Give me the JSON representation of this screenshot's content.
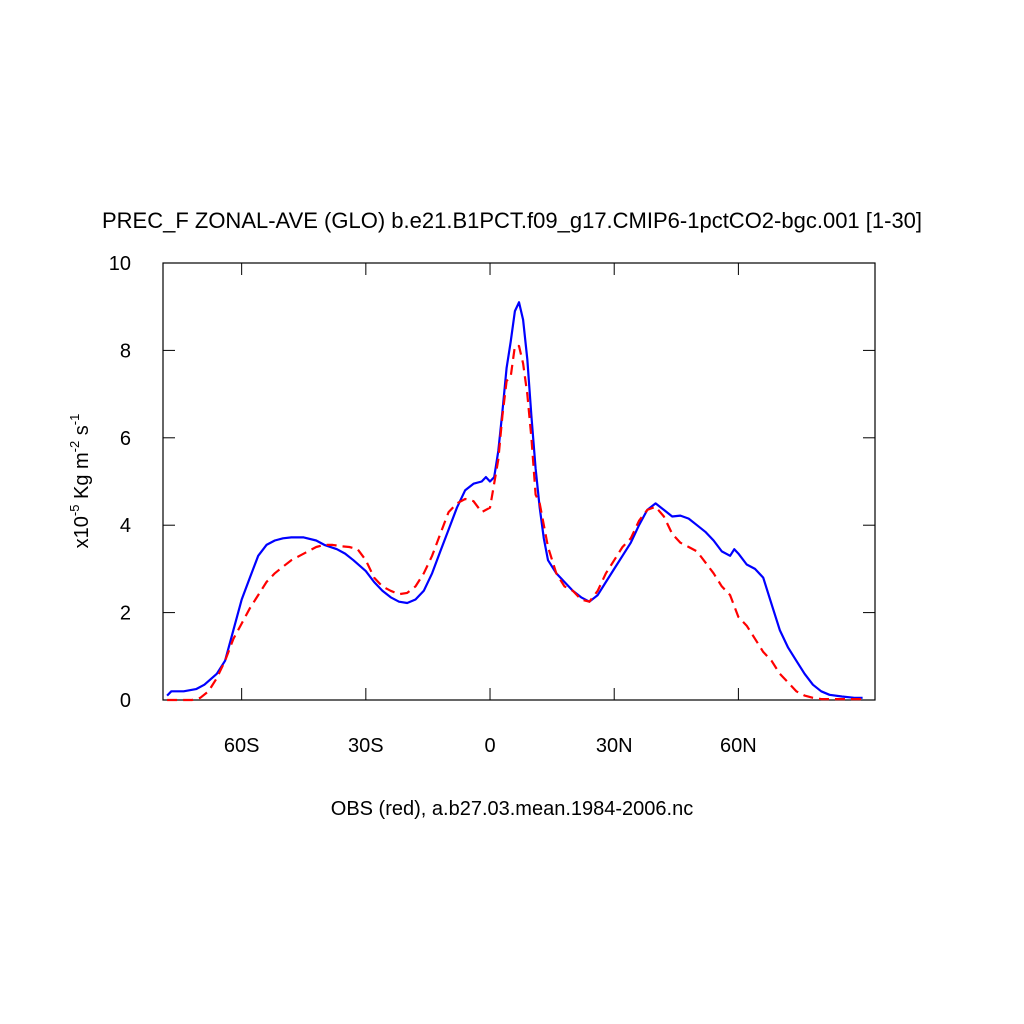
{
  "chart_data": {
    "type": "line",
    "title": "PREC_F ZONAL-AVE (GLO) b.e21.B1PCT.f09_g17.CMIP6-1pctCO2-bgc.001 [1-30]",
    "subtitle": "OBS (red), a.b27.03.mean.1984-2006.nc",
    "ylabel_parts": [
      "x10",
      "-5",
      " Kg m",
      "-2",
      " s",
      "-1"
    ],
    "xlim": [
      -79,
      93
    ],
    "ylim": [
      0,
      10
    ],
    "xticks": [
      {
        "value": -60,
        "label": "60S"
      },
      {
        "value": -30,
        "label": "30S"
      },
      0,
      {
        "value": 30,
        "label": "30N"
      },
      {
        "value": 60,
        "label": "60N"
      }
    ],
    "yticks": [
      0,
      2,
      4,
      6,
      8,
      10
    ],
    "series": [
      {
        "color": "#0000ff",
        "dash": false,
        "x": [
          -78,
          -77,
          -74,
          -71,
          -69,
          -66,
          -64,
          -62,
          -60,
          -58,
          -56,
          -54,
          -52,
          -50,
          -48,
          -45,
          -42,
          -40,
          -37,
          -35,
          -33,
          -30,
          -28,
          -26,
          -24,
          -22,
          -20,
          -18,
          -16,
          -14,
          -12,
          -10,
          -8,
          -6,
          -4,
          -2,
          -1,
          0,
          1,
          2,
          3,
          4,
          5,
          6,
          7,
          8,
          9,
          10,
          11,
          12,
          13,
          14,
          16,
          18,
          20,
          22,
          24,
          26,
          28,
          30,
          32,
          34,
          36,
          38,
          40,
          42,
          44,
          46,
          48,
          50,
          52,
          54,
          56,
          58,
          59,
          60,
          62,
          64,
          66,
          68,
          70,
          72,
          74,
          76,
          78,
          80,
          82,
          85,
          88,
          90
        ],
        "values": [
          0.1,
          0.2,
          0.2,
          0.25,
          0.35,
          0.6,
          0.9,
          1.6,
          2.3,
          2.8,
          3.3,
          3.55,
          3.65,
          3.7,
          3.72,
          3.72,
          3.65,
          3.55,
          3.45,
          3.35,
          3.2,
          2.95,
          2.7,
          2.5,
          2.35,
          2.25,
          2.22,
          2.3,
          2.5,
          2.9,
          3.4,
          3.9,
          4.4,
          4.8,
          4.95,
          5.0,
          5.1,
          5.0,
          5.1,
          5.7,
          6.6,
          7.6,
          8.2,
          8.9,
          9.1,
          8.7,
          7.8,
          6.5,
          5.3,
          4.4,
          3.7,
          3.2,
          2.9,
          2.7,
          2.5,
          2.35,
          2.25,
          2.4,
          2.7,
          3.0,
          3.3,
          3.6,
          4.0,
          4.35,
          4.5,
          4.35,
          4.2,
          4.22,
          4.15,
          4.0,
          3.85,
          3.65,
          3.4,
          3.3,
          3.45,
          3.35,
          3.1,
          3.0,
          2.8,
          2.2,
          1.6,
          1.2,
          0.9,
          0.6,
          0.35,
          0.2,
          0.12,
          0.08,
          0.05,
          0.05
        ]
      },
      {
        "color": "#ff0000",
        "dash": true,
        "x": [
          -78,
          -72,
          -70,
          -68,
          -66,
          -64,
          -62,
          -60,
          -58,
          -56,
          -54,
          -52,
          -50,
          -48,
          -46,
          -44,
          -42,
          -40,
          -38,
          -36,
          -34,
          -32,
          -30,
          -28,
          -26,
          -24,
          -22,
          -20,
          -18,
          -16,
          -14,
          -12,
          -10,
          -8,
          -6,
          -4,
          -2,
          0,
          2,
          3,
          4,
          5,
          6,
          7,
          8,
          9,
          10,
          11,
          12,
          14,
          16,
          18,
          20,
          22,
          24,
          26,
          28,
          30,
          32,
          34,
          36,
          38,
          40,
          42,
          44,
          46,
          48,
          50,
          52,
          54,
          56,
          58,
          60,
          62,
          64,
          66,
          68,
          70,
          72,
          74,
          76,
          78,
          80,
          90
        ],
        "values": [
          0,
          0,
          0.05,
          0.2,
          0.5,
          0.9,
          1.4,
          1.75,
          2.1,
          2.4,
          2.7,
          2.9,
          3.05,
          3.2,
          3.3,
          3.4,
          3.5,
          3.55,
          3.55,
          3.52,
          3.5,
          3.45,
          3.2,
          2.8,
          2.6,
          2.5,
          2.42,
          2.45,
          2.6,
          2.9,
          3.3,
          3.8,
          4.3,
          4.5,
          4.6,
          4.55,
          4.3,
          4.4,
          5.5,
          6.5,
          7.3,
          7.4,
          8.1,
          8.1,
          7.7,
          7.0,
          6.0,
          4.7,
          4.5,
          3.5,
          2.9,
          2.6,
          2.5,
          2.3,
          2.25,
          2.5,
          2.9,
          3.2,
          3.5,
          3.7,
          4.1,
          4.35,
          4.42,
          4.2,
          3.8,
          3.6,
          3.5,
          3.4,
          3.15,
          2.9,
          2.6,
          2.4,
          1.9,
          1.7,
          1.4,
          1.1,
          0.9,
          0.6,
          0.4,
          0.2,
          0.1,
          0.05,
          0.02,
          0.02
        ]
      }
    ]
  }
}
